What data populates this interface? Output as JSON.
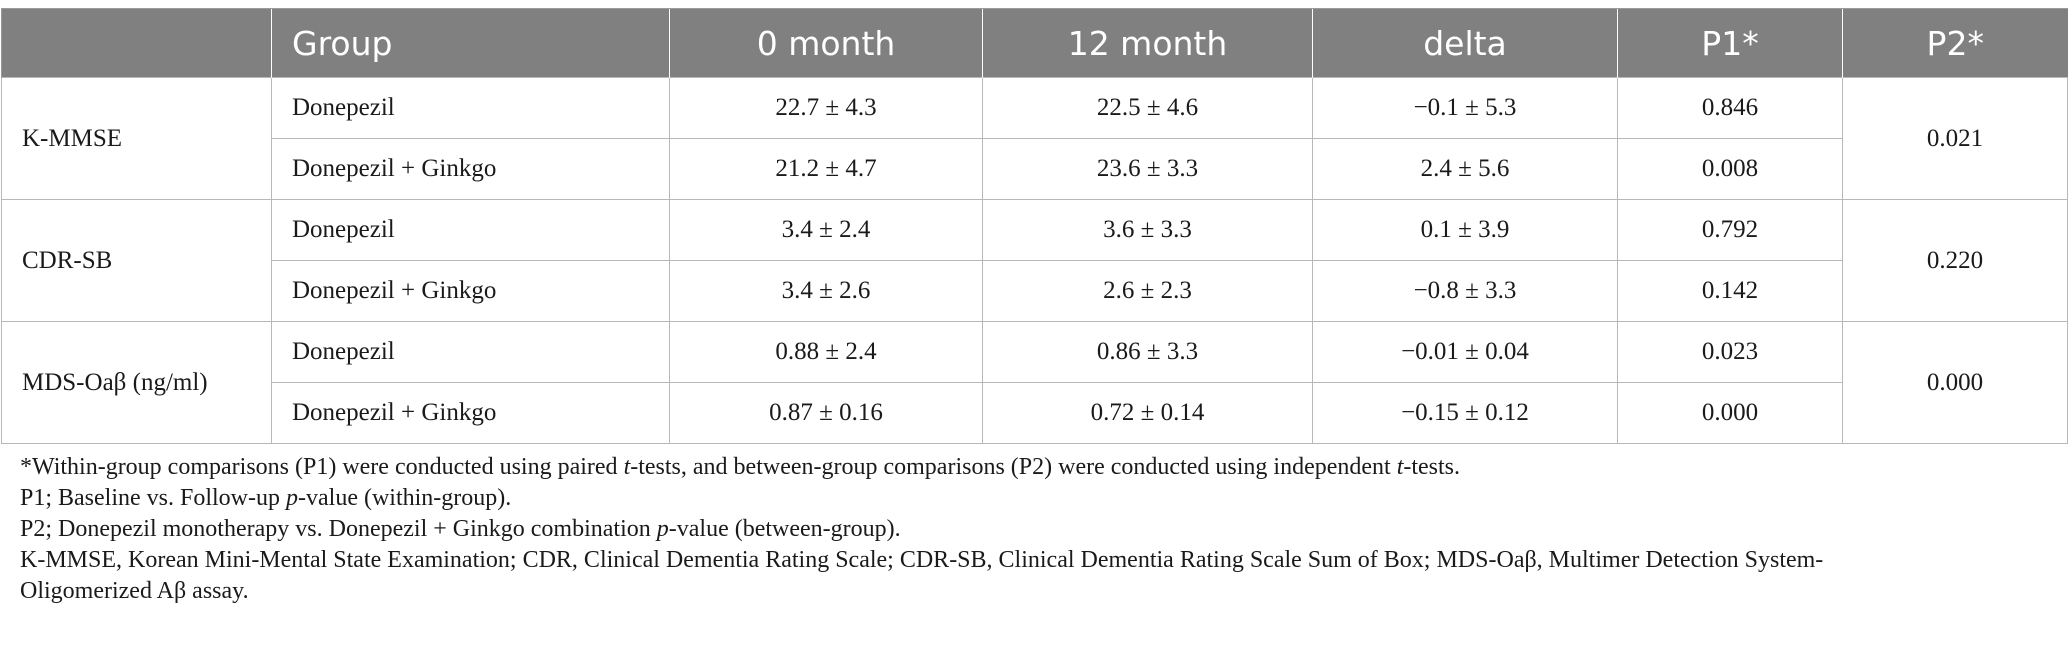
{
  "table": {
    "headers": [
      "",
      "Group",
      "0 month",
      "12 month",
      "delta",
      "P1*",
      "P2*"
    ],
    "blocks": [
      {
        "measure": "K-MMSE",
        "p2": "0.021",
        "rows": [
          {
            "group": "Donepezil",
            "m0": "22.7 ± 4.3",
            "m12": "22.5 ± 4.6",
            "delta": "−0.1 ± 5.3",
            "p1": "0.846"
          },
          {
            "group": "Donepezil + Ginkgo",
            "m0": "21.2 ± 4.7",
            "m12": "23.6 ± 3.3",
            "delta": "2.4 ± 5.6",
            "p1": "0.008"
          }
        ]
      },
      {
        "measure": "CDR-SB",
        "p2": "0.220",
        "rows": [
          {
            "group": "Donepezil",
            "m0": "3.4 ± 2.4",
            "m12": "3.6 ± 3.3",
            "delta": "0.1 ± 3.9",
            "p1": "0.792"
          },
          {
            "group": "Donepezil + Ginkgo",
            "m0": "3.4 ± 2.6",
            "m12": "2.6 ± 2.3",
            "delta": "−0.8 ± 3.3",
            "p1": "0.142"
          }
        ]
      },
      {
        "measure": "MDS-Oaβ (ng/ml)",
        "p2": "0.000",
        "rows": [
          {
            "group": "Donepezil",
            "m0": "0.88 ± 2.4",
            "m12": "0.86 ± 3.3",
            "delta": "−0.01 ± 0.04",
            "p1": "0.023"
          },
          {
            "group": "Donepezil + Ginkgo",
            "m0": "0.87 ± 0.16",
            "m12": "0.72 ± 0.14",
            "delta": "−0.15 ± 0.12",
            "p1": "0.000"
          }
        ]
      }
    ]
  },
  "notes": {
    "n1": {
      "a": "*Within-group comparisons (P1) were conducted using paired ",
      "b": "t",
      "c": "-tests, and between-group comparisons (P2) were conducted using independent ",
      "d": "t",
      "e": "-tests."
    },
    "n2": {
      "a": "P1; Baseline vs. Follow-up ",
      "b": "p",
      "c": "-value (within-group)."
    },
    "n3": {
      "a": "P2; Donepezil monotherapy vs. Donepezil + Ginkgo combination ",
      "b": "p",
      "c": "-value (between-group)."
    },
    "n4": "K-MMSE, Korean Mini-Mental State Examination; CDR, Clinical Dementia Rating Scale; CDR-SB, Clinical Dementia Rating Scale Sum of Box; MDS-Oaβ, Multimer Detection System-",
    "n5": "Oligomerized Aβ assay."
  }
}
